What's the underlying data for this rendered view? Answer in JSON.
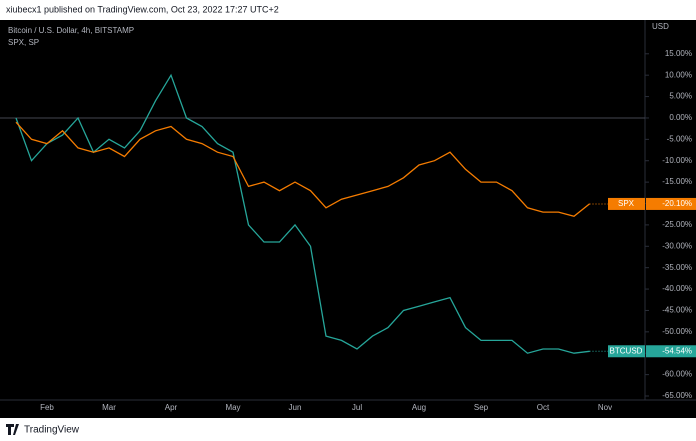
{
  "header": "xiubecx1 published on TradingView.com, Oct 23, 2022 17:27 UTC+2",
  "footer": "TradingView",
  "chart_data": {
    "type": "line",
    "y_unit": "USD",
    "categories": [
      null,
      null,
      "Feb",
      null,
      null,
      null,
      "Mar",
      null,
      null,
      null,
      "Apr",
      null,
      null,
      null,
      "May",
      null,
      null,
      null,
      "Jun",
      null,
      null,
      null,
      "Jul",
      null,
      null,
      null,
      "Aug",
      null,
      null,
      null,
      "Sep",
      null,
      null,
      null,
      "Oct",
      null,
      null,
      null,
      "Nov"
    ],
    "series": [
      {
        "name": "Bitcoin / U.S. Dollar, 4h, BITSTAMP",
        "symbol": "BTCUSD",
        "color": "#26a69a",
        "values": [
          0,
          -10,
          -6,
          -4,
          0,
          -8,
          -5,
          -7,
          -3,
          4,
          10,
          0,
          -2,
          -6,
          -8,
          -25,
          -29,
          -29,
          -25,
          -30,
          -51,
          -52,
          -54,
          -51,
          -49,
          -45,
          -44,
          -43,
          -42,
          -49,
          -52,
          -52,
          -52,
          -55,
          -54,
          -54,
          -55,
          -54.54,
          null
        ],
        "value_labels": [
          null,
          null,
          null,
          null,
          null,
          null,
          null,
          null,
          null,
          null,
          null,
          null,
          null,
          null,
          null,
          null,
          null,
          null,
          null,
          null,
          null,
          null,
          null,
          null,
          null,
          null,
          null,
          null,
          null,
          null,
          null,
          null,
          null,
          null,
          null,
          null,
          null,
          "-54.54%",
          null
        ]
      },
      {
        "name": "SPX, SP",
        "symbol": "SPX",
        "color": "#f57c00",
        "values": [
          -1,
          -5,
          -6,
          -3,
          -7,
          -8,
          -7,
          -9,
          -5,
          -3,
          -2,
          -5,
          -6,
          -8,
          -9,
          -16,
          -15,
          -17,
          -15,
          -17,
          -21,
          -19,
          -18,
          -17,
          -16,
          -14,
          -11,
          -10,
          -8,
          -12,
          -15,
          -15,
          -17,
          -21,
          -22,
          -22,
          -23,
          -20.1,
          null
        ],
        "value_labels": [
          null,
          null,
          null,
          null,
          null,
          null,
          null,
          null,
          null,
          null,
          null,
          null,
          null,
          null,
          null,
          null,
          null,
          null,
          null,
          null,
          null,
          null,
          null,
          null,
          null,
          null,
          null,
          null,
          null,
          null,
          null,
          null,
          null,
          null,
          null,
          null,
          null,
          "-20.10%",
          null
        ]
      }
    ],
    "ylim": [
      -66.4,
      22.9
    ],
    "yticks": [
      {
        "value": 15,
        "label": "15.00%"
      },
      {
        "value": 10,
        "label": "10.00%"
      },
      {
        "value": 5,
        "label": "5.00%"
      },
      {
        "value": 0,
        "label": "0.00%"
      },
      {
        "value": -5,
        "label": "-5.00%"
      },
      {
        "value": -10,
        "label": "-10.00%"
      },
      {
        "value": -15,
        "label": "-15.00%"
      },
      {
        "value": -20,
        "label": "-20.00%"
      },
      {
        "value": -25,
        "label": "-25.00%"
      },
      {
        "value": -30,
        "label": "-30.00%"
      },
      {
        "value": -35,
        "label": "-35.00%"
      },
      {
        "value": -40,
        "label": "-40.00%"
      },
      {
        "value": -45,
        "label": "-45.00%"
      },
      {
        "value": -50,
        "label": "-50.00%"
      },
      {
        "value": -55,
        "label": "-55.00%"
      },
      {
        "value": -60,
        "label": "-60.00%"
      },
      {
        "value": -65,
        "label": "-65.00%"
      }
    ],
    "baseline": 0
  }
}
